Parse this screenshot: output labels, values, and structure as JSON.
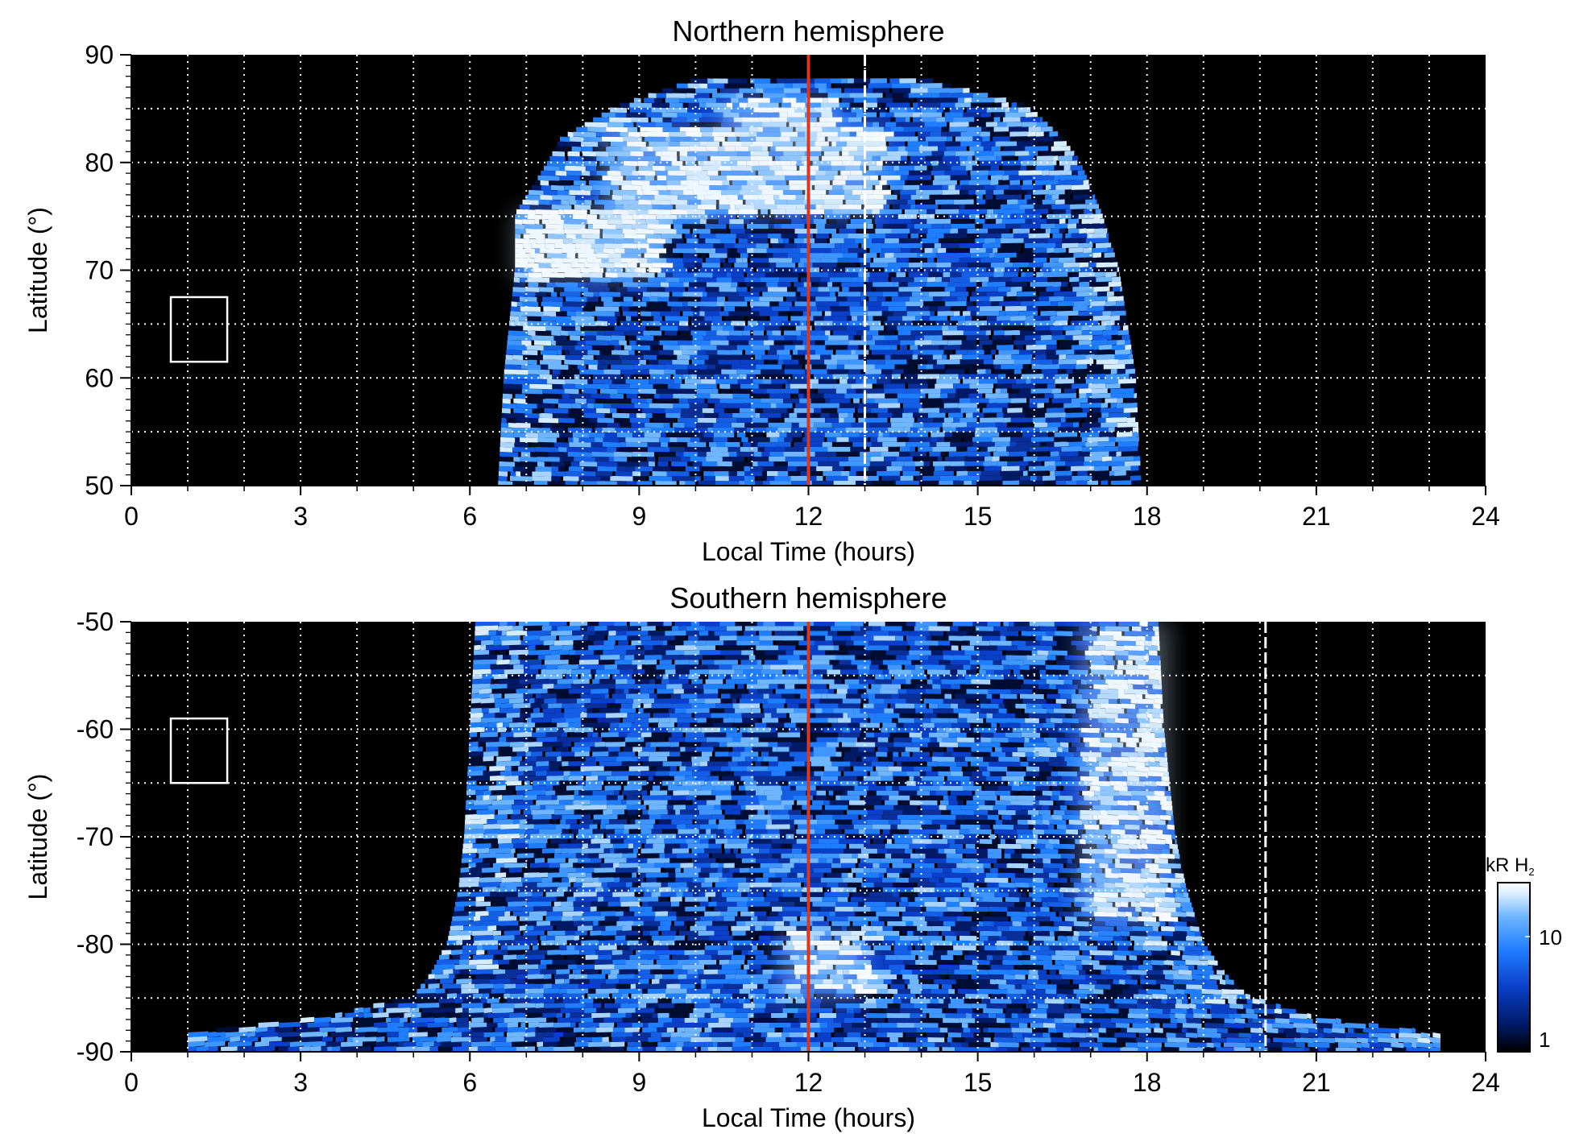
{
  "chart_data": [
    {
      "type": "heatmap",
      "title": "Northern hemisphere",
      "xlabel": "Local Time (hours)",
      "ylabel": "Latitude (°)",
      "xlim": [
        0,
        24
      ],
      "ylim": [
        50,
        90
      ],
      "xticks": [
        "0",
        "3",
        "6",
        "9",
        "12",
        "15",
        "18",
        "21",
        "24"
      ],
      "yticks": [
        "50",
        "60",
        "70",
        "80",
        "90"
      ],
      "grid": true,
      "noon_line_hours": 12,
      "dashed_line_hours": 13,
      "box": {
        "lt_range": [
          0.7,
          1.7
        ],
        "lat_range": [
          61.5,
          67.5
        ]
      },
      "coverage": [
        {
          "lat": 50,
          "lt_start": 6.5,
          "lt_end": 17.9
        },
        {
          "lat": 60,
          "lt_start": 6.6,
          "lt_end": 17.8
        },
        {
          "lat": 70,
          "lt_start": 6.8,
          "lt_end": 17.5
        },
        {
          "lat": 75,
          "lt_start": 6.8,
          "lt_end": 17.2
        },
        {
          "lat": 80,
          "lt_start": 7.4,
          "lt_end": 16.8
        },
        {
          "lat": 82,
          "lt_start": 7.6,
          "lt_end": 16.5
        },
        {
          "lat": 85,
          "lt_start": 8.6,
          "lt_end": 15.9
        },
        {
          "lat": 87.5,
          "lt_start": 10.0,
          "lt_end": 14.1
        }
      ],
      "bright_regions": [
        {
          "lt_range": [
            6.8,
            9.3
          ],
          "lat_range": [
            69,
            75.5
          ],
          "intensity_kR": 25
        },
        {
          "lt_range": [
            8.3,
            13.3
          ],
          "lat_range": [
            75,
            83
          ],
          "intensity_kR": 20
        },
        {
          "lt_range": [
            10.5,
            12.5
          ],
          "lat_range": [
            82,
            86
          ],
          "intensity_kR": 18
        }
      ]
    },
    {
      "type": "heatmap",
      "title": "Southern hemisphere",
      "xlabel": "Local Time (hours)",
      "ylabel": "Latitude (°)",
      "xlim": [
        0,
        24
      ],
      "ylim": [
        -90,
        -50
      ],
      "xticks": [
        "0",
        "3",
        "6",
        "9",
        "12",
        "15",
        "18",
        "21",
        "24"
      ],
      "yticks": [
        "-90",
        "-80",
        "-70",
        "-60",
        "-50"
      ],
      "grid": true,
      "noon_line_hours": 12,
      "dashed_line_hours": 20.1,
      "box": {
        "lt_range": [
          0.7,
          1.7
        ],
        "lat_range": [
          -65,
          -59
        ]
      },
      "coverage": [
        {
          "lat": -50,
          "lt_start": 6.1,
          "lt_end": 18.2
        },
        {
          "lat": -60,
          "lt_start": 6.0,
          "lt_end": 18.3
        },
        {
          "lat": -70,
          "lt_start": 5.9,
          "lt_end": 18.5
        },
        {
          "lat": -75,
          "lt_start": 5.8,
          "lt_end": 18.7
        },
        {
          "lat": -80,
          "lt_start": 5.6,
          "lt_end": 19.0
        },
        {
          "lat": -83,
          "lt_start": 5.3,
          "lt_end": 19.4
        },
        {
          "lat": -85,
          "lt_start": 5.0,
          "lt_end": 19.8
        },
        {
          "lat": -87,
          "lt_start": 3.5,
          "lt_end": 21.0
        },
        {
          "lat": -88.5,
          "lt_start": 1.0,
          "lt_end": 23.2
        }
      ],
      "bright_regions": [
        {
          "lt_range": [
            16.8,
            18.4
          ],
          "lat_range": [
            -78,
            -50
          ],
          "intensity_kR": 15
        },
        {
          "lt_range": [
            11.5,
            13.0
          ],
          "lat_range": [
            -85,
            -79
          ],
          "intensity_kR": 14
        }
      ]
    }
  ],
  "colorbar": {
    "unit_label": "kR H",
    "unit_subscript": "2",
    "scale": "log",
    "range_kR": [
      1,
      25
    ],
    "ticks": [
      "1",
      "10"
    ],
    "colors": [
      "#000000",
      "#001a66",
      "#0a3fc8",
      "#1f7dff",
      "#6fb6ff",
      "#d6ecff",
      "#ffffff"
    ]
  },
  "style": {
    "background": "#000000",
    "noon_line_color": "#d9381e",
    "grid_color": "#ffffff",
    "panel_frame_color": "#000000"
  }
}
